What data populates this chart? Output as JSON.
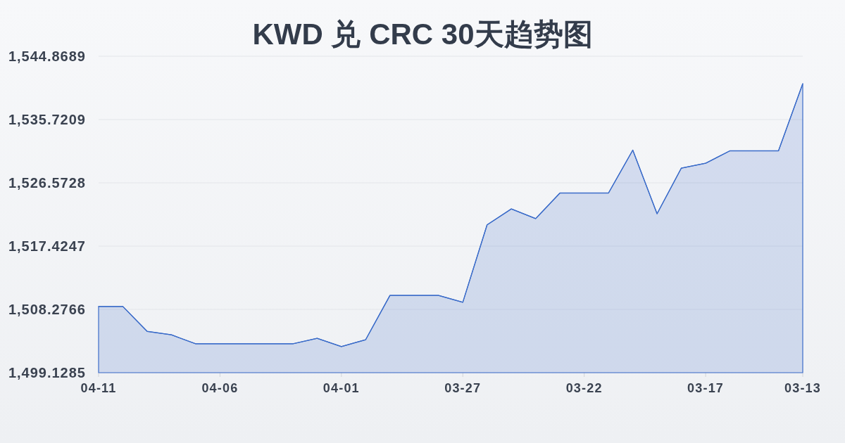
{
  "chart_data": {
    "type": "area",
    "title": "KWD 兑 CRC 30天趋势图",
    "categories": [
      "04-11",
      null,
      null,
      null,
      null,
      "04-06",
      null,
      null,
      null,
      null,
      "04-01",
      null,
      null,
      null,
      null,
      "03-27",
      null,
      null,
      null,
      null,
      "03-22",
      null,
      null,
      null,
      null,
      "03-17",
      null,
      null,
      null,
      "03-13"
    ],
    "values": [
      1508.7,
      1508.7,
      1505.1,
      1504.6,
      1503.3,
      1503.3,
      1503.3,
      1503.3,
      1503.3,
      1504.1,
      1502.9,
      1503.9,
      1510.3,
      1510.3,
      1510.3,
      1509.3,
      1520.5,
      1522.8,
      1521.4,
      1525.1,
      1525.1,
      1525.1,
      1531.3,
      1522.1,
      1528.7,
      1529.4,
      1531.2,
      1531.2,
      1531.2,
      1540.9
    ],
    "color": "#3b6cc9",
    "ylim": [
      1499.1285,
      1544.8689
    ],
    "yticks": [
      {
        "value": 1499.1285,
        "label": "1,499.1285"
      },
      {
        "value": 1508.2766,
        "label": "1,508.2766"
      },
      {
        "value": 1517.4247,
        "label": "1,517.4247"
      },
      {
        "value": 1526.5728,
        "label": "1,526.5728"
      },
      {
        "value": 1535.7209,
        "label": "1,535.7209"
      },
      {
        "value": 1544.8689,
        "label": "1,544.8689"
      }
    ],
    "grid": "y"
  }
}
